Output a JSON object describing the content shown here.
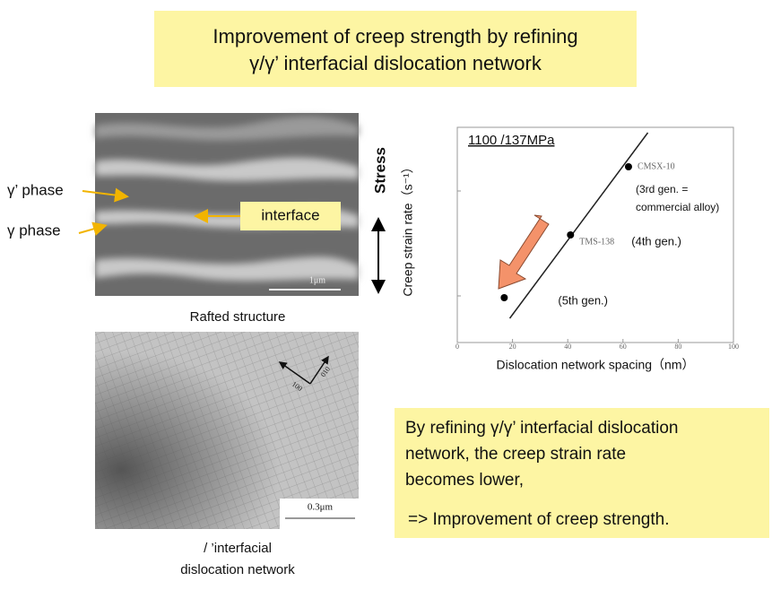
{
  "title": {
    "line1": "Improvement of creep strength by refining",
    "line2": "γ/γ’ interfacial dislocation network"
  },
  "micrograph_top": {
    "gamma_prime_label": "γ’ phase",
    "gamma_label": "γ phase",
    "interface_label": "interface",
    "stress_label": "Stress",
    "scale_label": "1μm",
    "caption": "Rafted structure"
  },
  "micrograph_bottom": {
    "scale_label": "0.3μm",
    "orientation_labels": [
      "100",
      "010"
    ],
    "caption": [
      "/    ’interfacial",
      "dislocation network"
    ]
  },
  "chart_data": {
    "type": "scatter",
    "title": "1100    /137MPa",
    "x_label": "Dislocation network spacing（nm）",
    "y_label": "Creep strain rate（s⁻¹）",
    "x": [
      17,
      41,
      62
    ],
    "y": [
      50,
      120,
      196
    ],
    "point_labels": [
      {
        "note": [
          "(5th gen.)"
        ]
      },
      {
        "alloy": "TMS-138",
        "note": [
          "(4th gen.)"
        ]
      },
      {
        "alloy": "CMSX-10",
        "note": [
          "(3rd gen. =",
          "commercial alloy)"
        ]
      }
    ],
    "color": "#000000",
    "xlim": [
      0,
      100
    ],
    "xticks": [
      0,
      20,
      40,
      60,
      80,
      100
    ],
    "ylim": [
      0,
      240
    ],
    "yticks": [
      52,
      169
    ],
    "fit_line": {
      "x": [
        19,
        69
      ],
      "y": [
        27,
        234
      ]
    }
  },
  "summary": {
    "lines": [
      "By refining γ/γ’ interfacial dislocation",
      "network, the creep strain rate",
      "becomes lower,",
      "=> Improvement of creep strength."
    ]
  }
}
